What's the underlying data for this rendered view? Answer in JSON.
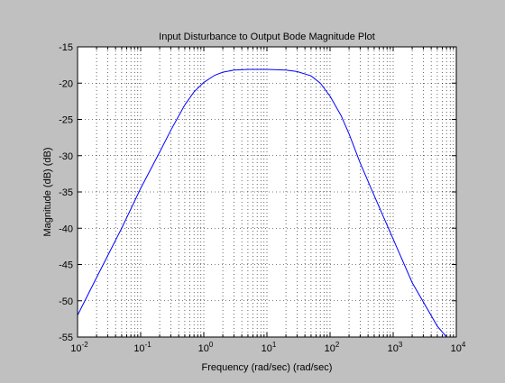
{
  "figure": {
    "background": "#c0c0c0",
    "axes_background": "#ffffff"
  },
  "chart_data": {
    "type": "line",
    "title": "Input Disturbance to Output Bode Magnitude Plot",
    "xlabel": "Frequency (rad/sec)  (rad/sec)",
    "ylabel": "Magnitude (dB) (dB)",
    "xscale": "log",
    "xlim": [
      0.01,
      10000
    ],
    "ylim": [
      -55,
      -15
    ],
    "x_ticks": [
      {
        "value": 0.01,
        "base": "10",
        "exp": "-2"
      },
      {
        "value": 0.1,
        "base": "10",
        "exp": "-1"
      },
      {
        "value": 1,
        "base": "10",
        "exp": "0"
      },
      {
        "value": 10,
        "base": "10",
        "exp": "1"
      },
      {
        "value": 100,
        "base": "10",
        "exp": "2"
      },
      {
        "value": 1000,
        "base": "10",
        "exp": "3"
      },
      {
        "value": 10000,
        "base": "10",
        "exp": "4"
      }
    ],
    "y_ticks": [
      {
        "value": -15,
        "label": "-15"
      },
      {
        "value": -20,
        "label": "-20"
      },
      {
        "value": -25,
        "label": "-25"
      },
      {
        "value": -30,
        "label": "-30"
      },
      {
        "value": -35,
        "label": "-35"
      },
      {
        "value": -40,
        "label": "-40"
      },
      {
        "value": -45,
        "label": "-45"
      },
      {
        "value": -50,
        "label": "-50"
      },
      {
        "value": -55,
        "label": "-55"
      }
    ],
    "grid": true,
    "grid_style": "dotted",
    "series": [
      {
        "color": "#0000ff",
        "x": [
          0.01,
          0.02,
          0.05,
          0.1,
          0.2,
          0.3,
          0.5,
          0.7,
          1,
          1.5,
          2,
          3,
          5,
          10,
          20,
          30,
          50,
          70,
          100,
          150,
          200,
          300,
          500,
          1000,
          2000,
          5000,
          7000
        ],
        "y": [
          -52,
          -46.8,
          -40,
          -34.5,
          -29.5,
          -26.5,
          -23,
          -21.2,
          -19.9,
          -18.9,
          -18.5,
          -18.2,
          -18.1,
          -18.1,
          -18.2,
          -18.4,
          -19,
          -20,
          -21.8,
          -24.5,
          -27,
          -31,
          -35.5,
          -41.5,
          -47.5,
          -53.5,
          -55
        ]
      }
    ]
  }
}
